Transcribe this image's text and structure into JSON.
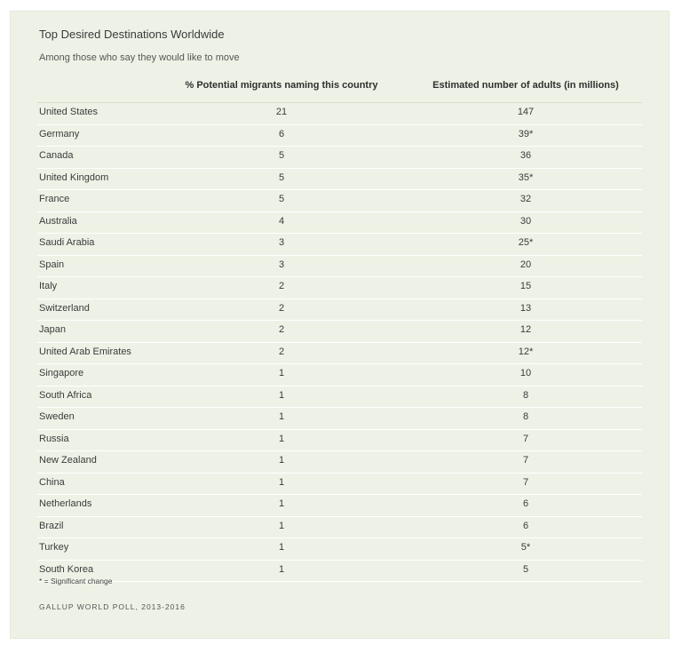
{
  "title": "Top Desired Destinations Worldwide",
  "subtitle": "Among those who say they would like to move",
  "footnote": "* = Significant change",
  "source": "GALLUP WORLD POLL, 2013-2016",
  "chart_data": {
    "type": "table",
    "title": "Top Desired Destinations Worldwide",
    "subtitle": "Among those who say they would like to move",
    "columns": [
      "",
      "% Potential migrants naming this country",
      "Estimated number of adults (in millions)"
    ],
    "rows": [
      {
        "country": "United States",
        "pct": "21",
        "adults": "147"
      },
      {
        "country": "Germany",
        "pct": "6",
        "adults": "39*"
      },
      {
        "country": "Canada",
        "pct": "5",
        "adults": "36"
      },
      {
        "country": "United Kingdom",
        "pct": "5",
        "adults": "35*"
      },
      {
        "country": "France",
        "pct": "5",
        "adults": "32"
      },
      {
        "country": "Australia",
        "pct": "4",
        "adults": "30"
      },
      {
        "country": "Saudi Arabia",
        "pct": "3",
        "adults": "25*"
      },
      {
        "country": "Spain",
        "pct": "3",
        "adults": "20"
      },
      {
        "country": "Italy",
        "pct": "2",
        "adults": "15"
      },
      {
        "country": "Switzerland",
        "pct": "2",
        "adults": "13"
      },
      {
        "country": "Japan",
        "pct": "2",
        "adults": "12"
      },
      {
        "country": "United Arab Emirates",
        "pct": "2",
        "adults": "12*"
      },
      {
        "country": "Singapore",
        "pct": "1",
        "adults": "10"
      },
      {
        "country": "South Africa",
        "pct": "1",
        "adults": "8"
      },
      {
        "country": "Sweden",
        "pct": "1",
        "adults": "8"
      },
      {
        "country": "Russia",
        "pct": "1",
        "adults": "7"
      },
      {
        "country": "New Zealand",
        "pct": "1",
        "adults": "7"
      },
      {
        "country": "China",
        "pct": "1",
        "adults": "7"
      },
      {
        "country": "Netherlands",
        "pct": "1",
        "adults": "6"
      },
      {
        "country": "Brazil",
        "pct": "1",
        "adults": "6"
      },
      {
        "country": "Turkey",
        "pct": "1",
        "adults": "5*"
      },
      {
        "country": "South Korea",
        "pct": "1",
        "adults": "5"
      }
    ]
  }
}
